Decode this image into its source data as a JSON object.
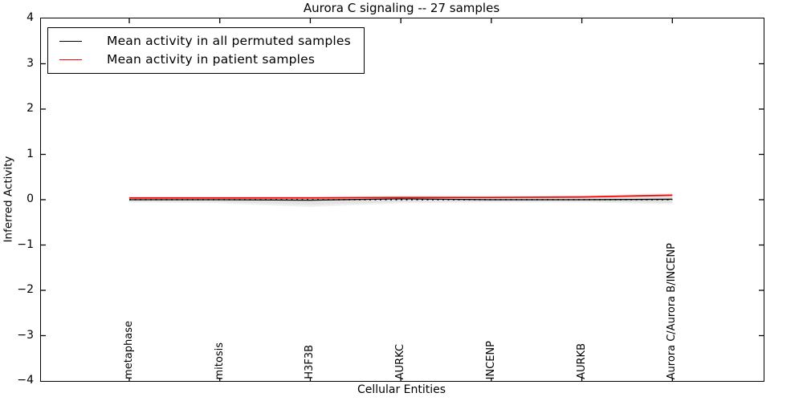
{
  "figure": {
    "background": "#ffffff",
    "axes_color": "#000000"
  },
  "chart_data": {
    "type": "line",
    "title": "Aurora C signaling -- 27 samples",
    "xlabel": "Cellular Entities",
    "ylabel": "Inferred Activity",
    "ylim": [
      -4,
      4
    ],
    "grid": false,
    "legend_position": "upper-left",
    "yticks": [
      {
        "value": -4,
        "label": "−4"
      },
      {
        "value": -3,
        "label": "−3"
      },
      {
        "value": -2,
        "label": "−2"
      },
      {
        "value": -1,
        "label": "−1"
      },
      {
        "value": 0,
        "label": "0"
      },
      {
        "value": 1,
        "label": "1"
      },
      {
        "value": 2,
        "label": "2"
      },
      {
        "value": 3,
        "label": "3"
      },
      {
        "value": 4,
        "label": "4"
      }
    ],
    "categories": [
      "metaphase",
      "mitosis",
      "H3F3B",
      "AURKC",
      "INCENP",
      "AURKB",
      "Aurora C/Aurora B/INCENP"
    ],
    "series": [
      {
        "name": "Mean activity in all permuted samples",
        "color": "#000000",
        "style": "solid",
        "values": [
          0.0,
          0.0,
          -0.01,
          0.02,
          0.0,
          0.0,
          0.01
        ]
      },
      {
        "name": "Mean activity in patient samples",
        "color": "#ff0000",
        "style": "solid",
        "values": [
          0.04,
          0.04,
          0.04,
          0.05,
          0.05,
          0.06,
          0.1
        ]
      }
    ],
    "zero_line": {
      "value": 0,
      "color": "#000000",
      "style": "dotted"
    },
    "bands": [
      {
        "color": "#f0f0f0",
        "upper": [
          0.06,
          0.06,
          0.07,
          0.08,
          0.08,
          0.09,
          0.15
        ],
        "lower": [
          -0.06,
          -0.08,
          -0.16,
          -0.08,
          -0.06,
          -0.06,
          -0.1
        ]
      },
      {
        "color": "#e3e3e3",
        "upper": [
          0.04,
          0.04,
          0.05,
          0.06,
          0.06,
          0.07,
          0.12
        ],
        "lower": [
          -0.04,
          -0.05,
          -0.11,
          -0.05,
          -0.04,
          -0.04,
          -0.07
        ]
      }
    ]
  }
}
